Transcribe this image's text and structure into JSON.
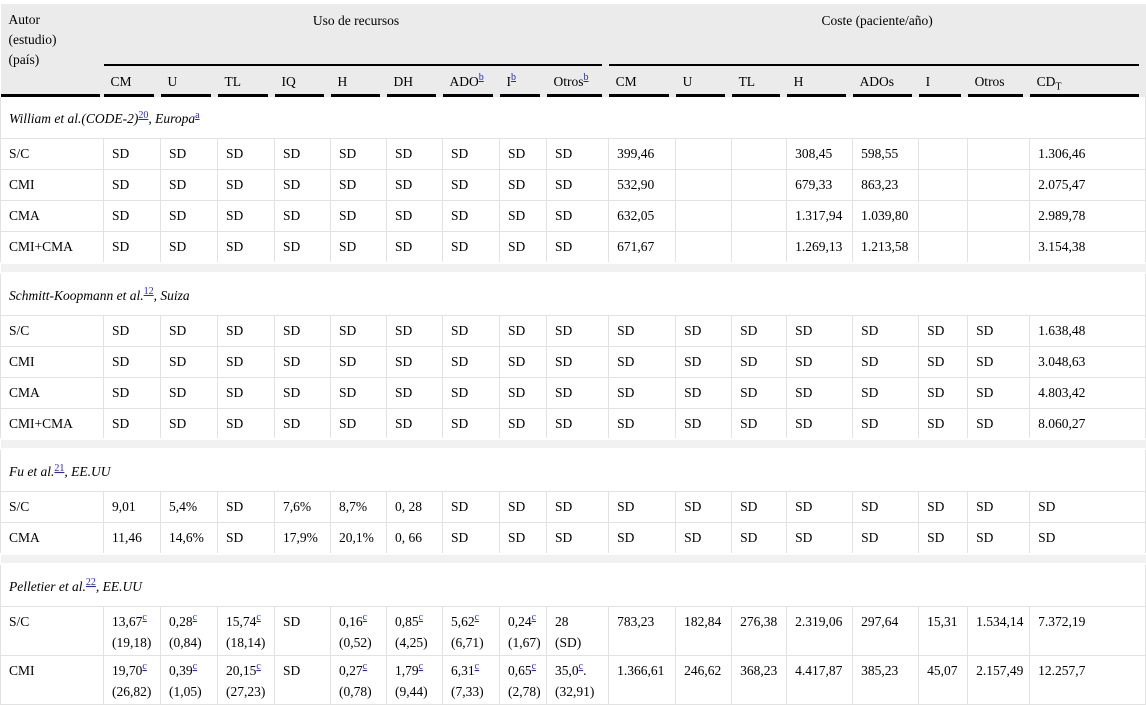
{
  "colors": {
    "header_bg": "#ebebeb",
    "separator_bg": "#f1f1f1",
    "grid_line": "#e2e2e2",
    "rule": "#000000",
    "link_blue": "#2525cf",
    "text": "#000000"
  },
  "header": {
    "autor_lines": [
      "Autor",
      "(estudio)",
      "(país)"
    ],
    "groups": [
      {
        "label": "Uso de recursos",
        "span": 9
      },
      {
        "label": "Coste (paciente/año)",
        "span": 8
      }
    ],
    "columns": [
      {
        "t": "CM"
      },
      {
        "t": "U"
      },
      {
        "t": "TL"
      },
      {
        "t": "IQ"
      },
      {
        "t": "H"
      },
      {
        "t": "DH"
      },
      {
        "t": "ADO",
        "sup": "b"
      },
      {
        "t": "I",
        "sup": "b"
      },
      {
        "t": "Otros",
        "sup": "b"
      },
      {
        "t": "CM"
      },
      {
        "t": "U"
      },
      {
        "t": "TL"
      },
      {
        "t": "H"
      },
      {
        "t": "ADOs"
      },
      {
        "t": "I"
      },
      {
        "t": "Otros"
      },
      {
        "t": "CD",
        "sub": "T"
      }
    ]
  },
  "sections": [
    {
      "title": [
        {
          "t": "William et al.(CODE-2)"
        },
        {
          "sup": "20"
        },
        {
          "t": ", Europa"
        },
        {
          "sup": "a"
        }
      ],
      "rows": [
        {
          "label": "S/C",
          "cells": [
            "SD",
            "SD",
            "SD",
            "SD",
            "SD",
            "SD",
            "SD",
            "SD",
            "SD",
            "399,46",
            "",
            "",
            "308,45",
            "598,55",
            "",
            "",
            "1.306,46"
          ]
        },
        {
          "label": "CMI",
          "cells": [
            "SD",
            "SD",
            "SD",
            "SD",
            "SD",
            "SD",
            "SD",
            "SD",
            "SD",
            "532,90",
            "",
            "",
            "679,33",
            "863,23",
            "",
            "",
            "2.075,47"
          ]
        },
        {
          "label": "CMA",
          "cells": [
            "SD",
            "SD",
            "SD",
            "SD",
            "SD",
            "SD",
            "SD",
            "SD",
            "SD",
            "632,05",
            "",
            "",
            "1.317,94",
            "1.039,80",
            "",
            "",
            "2.989,78"
          ]
        },
        {
          "label": "CMI+CMA",
          "cells": [
            "SD",
            "SD",
            "SD",
            "SD",
            "SD",
            "SD",
            "SD",
            "SD",
            "SD",
            "671,67",
            "",
            "",
            "1.269,13",
            "1.213,58",
            "",
            "",
            "3.154,38"
          ]
        }
      ]
    },
    {
      "title": [
        {
          "t": "Schmitt-Koopmann et al."
        },
        {
          "sup": "12"
        },
        {
          "t": ", Suiza"
        }
      ],
      "rows": [
        {
          "label": "S/C",
          "cells": [
            "SD",
            "SD",
            "SD",
            "SD",
            "SD",
            "SD",
            "SD",
            "SD",
            "SD",
            "SD",
            "SD",
            "SD",
            "SD",
            "SD",
            "SD",
            "SD",
            "1.638,48"
          ]
        },
        {
          "label": "CMI",
          "cells": [
            "SD",
            "SD",
            "SD",
            "SD",
            "SD",
            "SD",
            "SD",
            "SD",
            "SD",
            "SD",
            "SD",
            "SD",
            "SD",
            "SD",
            "SD",
            "SD",
            "3.048,63"
          ]
        },
        {
          "label": "CMA",
          "cells": [
            "SD",
            "SD",
            "SD",
            "SD",
            "SD",
            "SD",
            "SD",
            "SD",
            "SD",
            "SD",
            "SD",
            "SD",
            "SD",
            "SD",
            "SD",
            "SD",
            "4.803,42"
          ]
        },
        {
          "label": "CMI+CMA",
          "cells": [
            "SD",
            "SD",
            "SD",
            "SD",
            "SD",
            "SD",
            "SD",
            "SD",
            "SD",
            "SD",
            "SD",
            "SD",
            "SD",
            "SD",
            "SD",
            "SD",
            "8.060,27"
          ]
        }
      ]
    },
    {
      "title": [
        {
          "t": "Fu et al."
        },
        {
          "sup": "21"
        },
        {
          "t": ", EE.UU"
        }
      ],
      "rows": [
        {
          "label": "S/C",
          "cells": [
            "9,01",
            "5,4%",
            "SD",
            "7,6%",
            "8,7%",
            "0, 28",
            "SD",
            "SD",
            "SD",
            "SD",
            "SD",
            "SD",
            "SD",
            "SD",
            "SD",
            "SD",
            "SD"
          ]
        },
        {
          "label": "CMA",
          "cells": [
            "11,46",
            "14,6%",
            "SD",
            "17,9%",
            "20,1%",
            "0, 66",
            "SD",
            "SD",
            "SD",
            "SD",
            "SD",
            "SD",
            "SD",
            "SD",
            "SD",
            "SD",
            "SD"
          ]
        }
      ]
    },
    {
      "title": [
        {
          "t": "Pelletier et al."
        },
        {
          "sup": "22"
        },
        {
          "t": ", EE.UU"
        }
      ],
      "rows": [
        {
          "label": "S/C",
          "twoLine": true,
          "cells": [
            {
              "v": "13,67",
              "sup": "c",
              "l2": "(19,18)"
            },
            {
              "v": "0,28",
              "sup": "c",
              "l2": "(0,84)"
            },
            {
              "v": "15,74",
              "sup": "c",
              "l2": "(18,14)"
            },
            "SD",
            {
              "v": "0,16",
              "sup": "c",
              "l2": "(0,52)"
            },
            {
              "v": "0,85",
              "sup": "c",
              "l2": "(4,25)"
            },
            {
              "v": "5,62",
              "sup": "c",
              "l2": "(6,71)"
            },
            {
              "v": "0,24",
              "sup": "c",
              "l2": "(1,67)"
            },
            {
              "v": "28",
              "l2": "(SD)"
            },
            "783,23",
            "182,84",
            "276,38",
            "2.319,06",
            "297,64",
            "15,31",
            "1.534,14",
            "7.372,19"
          ]
        },
        {
          "label": "CMI",
          "twoLine": true,
          "cells": [
            {
              "v": "19,70",
              "sup": "c",
              "l2": "(26,82)"
            },
            {
              "v": "0,39",
              "sup": "c",
              "l2": "(1,05)"
            },
            {
              "v": "20,15",
              "sup": "c",
              "l2": "(27,23)"
            },
            "SD",
            {
              "v": "0,27",
              "sup": "c",
              "l2": "(0,78)"
            },
            {
              "v": "1,79",
              "sup": "c",
              "l2": "(9,44)"
            },
            {
              "v": "6,31",
              "sup": "c",
              "l2": "(7,33)"
            },
            {
              "v": "0,65",
              "sup": "c",
              "l2": "(2,78)"
            },
            {
              "v": "35,0",
              "sup": "c",
              "post": ".",
              "l2": "(32,91)"
            },
            "1.366,61",
            "246,62",
            "368,23",
            "4.417,87",
            "385,23",
            "45,07",
            "2.157,49",
            "12.257,7"
          ]
        }
      ]
    }
  ]
}
